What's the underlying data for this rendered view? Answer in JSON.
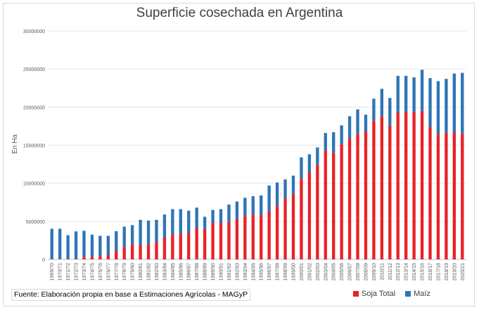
{
  "chart_data": {
    "type": "bar",
    "stacked": true,
    "title": "Superficie cosechada en Argentina",
    "ylabel": "En Ha",
    "xlabel": "",
    "ylim": [
      0,
      30000000
    ],
    "yticks": [
      0,
      5000000,
      10000000,
      15000000,
      20000000,
      25000000,
      30000000
    ],
    "grid": true,
    "legend_position": "bottom-right",
    "categories": [
      "1969/70",
      "1970/71",
      "1971/72",
      "1972/73",
      "1973/74",
      "1974/75",
      "1975/76",
      "1976/77",
      "1977/78",
      "1978/79",
      "1979/80",
      "1980/81",
      "1981/82",
      "1982/83",
      "1983/84",
      "1984/85",
      "1985/86",
      "1986/87",
      "1987/88",
      "1988/89",
      "1989/90",
      "1990/91",
      "1991/92",
      "1992/93",
      "1993/94",
      "1994/95",
      "1995/96",
      "1996/97",
      "1997/98",
      "1998/99",
      "1999/00",
      "2000/01",
      "2001/02",
      "2002/03",
      "2003/04",
      "2004/05",
      "2005/06",
      "2006/07",
      "2007/08",
      "2008/09",
      "2009/10",
      "2010/11",
      "2011/12",
      "2012/13",
      "2013/14",
      "2014/15",
      "2015/16",
      "2016/17",
      "2017/18",
      "2018/19",
      "2019/20",
      "2020/21"
    ],
    "series": [
      {
        "name": "Soja Total",
        "color": "#e8222a",
        "values": [
          30000,
          30000,
          80000,
          80000,
          350000,
          350000,
          400000,
          600000,
          1100000,
          1600000,
          2000000,
          1900000,
          2000000,
          2300000,
          2900000,
          3300000,
          3300000,
          3500000,
          4100000,
          4000000,
          4800000,
          4800000,
          4900000,
          5300000,
          5700000,
          5900000,
          5900000,
          6300000,
          7000000,
          8000000,
          8600000,
          10600000,
          11400000,
          12400000,
          14300000,
          14000000,
          15100000,
          15900000,
          16500000,
          16800000,
          18200000,
          18800000,
          17600000,
          19300000,
          19300000,
          19400000,
          19500000,
          17400000,
          16400000,
          16600000,
          16700000,
          16500000
        ]
      },
      {
        "name": "Maíz",
        "color": "#2e75b6",
        "values": [
          4000000,
          4000000,
          3100000,
          3600000,
          3400000,
          2900000,
          2700000,
          2500000,
          2600000,
          2700000,
          2500000,
          3300000,
          3100000,
          2900000,
          3000000,
          3300000,
          3300000,
          2900000,
          2700000,
          1600000,
          1700000,
          1800000,
          2300000,
          2300000,
          2400000,
          2400000,
          2500000,
          3400000,
          3100000,
          2500000,
          2400000,
          2800000,
          2400000,
          2300000,
          2300000,
          2700000,
          2500000,
          2900000,
          3200000,
          2200000,
          2900000,
          3600000,
          3600000,
          4800000,
          4800000,
          4500000,
          5400000,
          6400000,
          7000000,
          7100000,
          7700000,
          8000000
        ]
      }
    ]
  },
  "source_note": "Fuente: Elaboración propia en base a Estimaciones Agrícolas - MAGyP"
}
